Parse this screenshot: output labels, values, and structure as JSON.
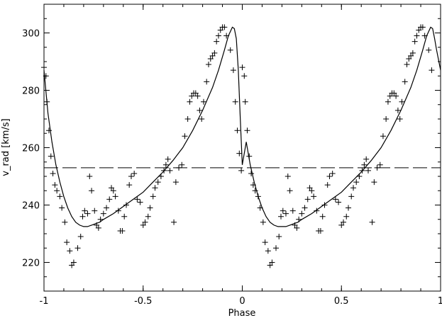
{
  "chart_data": {
    "type": "scatter",
    "title": "",
    "xlabel": "Phase",
    "ylabel": "v_rad  [km/s]",
    "xlim": [
      -1,
      1
    ],
    "ylim": [
      210,
      310
    ],
    "x_ticks": [
      -1,
      -0.5,
      0,
      0.5,
      1
    ],
    "x_tick_labels": [
      "-1",
      "-0.5",
      "0",
      "0.5",
      "1"
    ],
    "y_ticks": [
      220,
      240,
      260,
      280,
      300
    ],
    "y_tick_labels": [
      "220",
      "240",
      "260",
      "280",
      "300"
    ],
    "grid": false,
    "legend": "none",
    "reference_line": {
      "y": 253,
      "style": "dashed"
    },
    "series": [
      {
        "kind": "points",
        "marker": "plus",
        "points": [
          [
            -1.0,
            288
          ],
          [
            -0.99,
            285
          ],
          [
            -0.985,
            276
          ],
          [
            -0.975,
            266
          ],
          [
            -0.965,
            257
          ],
          [
            -0.955,
            251
          ],
          [
            -0.945,
            247
          ],
          [
            -0.935,
            245
          ],
          [
            -0.92,
            243
          ],
          [
            -0.91,
            239
          ],
          [
            -0.895,
            234
          ],
          [
            -0.885,
            227
          ],
          [
            -0.87,
            224
          ],
          [
            -0.86,
            219
          ],
          [
            -0.85,
            220
          ],
          [
            -0.83,
            225
          ],
          [
            -0.815,
            229
          ],
          [
            -0.805,
            236
          ],
          [
            -0.795,
            238
          ],
          [
            -0.78,
            237
          ],
          [
            -0.77,
            250
          ],
          [
            -0.76,
            245
          ],
          [
            -0.745,
            238
          ],
          [
            -0.735,
            233
          ],
          [
            -0.725,
            232
          ],
          [
            -0.715,
            235
          ],
          [
            -0.7,
            237
          ],
          [
            -0.685,
            239
          ],
          [
            -0.67,
            242
          ],
          [
            -0.66,
            246
          ],
          [
            -0.65,
            245
          ],
          [
            -0.64,
            243
          ],
          [
            -0.625,
            238
          ],
          [
            -0.615,
            231
          ],
          [
            -0.605,
            231
          ],
          [
            -0.595,
            236
          ],
          [
            -0.585,
            240
          ],
          [
            -0.57,
            247
          ],
          [
            -0.56,
            250
          ],
          [
            -0.545,
            251
          ],
          [
            -0.53,
            242
          ],
          [
            -0.515,
            241
          ],
          [
            -0.5,
            233
          ],
          [
            -0.49,
            234
          ],
          [
            -0.475,
            236
          ],
          [
            -0.465,
            239
          ],
          [
            -0.45,
            243
          ],
          [
            -0.44,
            246
          ],
          [
            -0.425,
            248
          ],
          [
            -0.41,
            250
          ],
          [
            -0.395,
            252
          ],
          [
            -0.385,
            254
          ],
          [
            -0.375,
            256
          ],
          [
            -0.365,
            252
          ],
          [
            -0.345,
            234
          ],
          [
            -0.335,
            248
          ],
          [
            -0.32,
            253
          ],
          [
            -0.305,
            254
          ],
          [
            -0.29,
            264
          ],
          [
            -0.275,
            270
          ],
          [
            -0.265,
            276
          ],
          [
            -0.255,
            278
          ],
          [
            -0.245,
            279
          ],
          [
            -0.235,
            279
          ],
          [
            -0.225,
            278
          ],
          [
            -0.215,
            273
          ],
          [
            -0.205,
            270
          ],
          [
            -0.195,
            276
          ],
          [
            -0.18,
            283
          ],
          [
            -0.17,
            289
          ],
          [
            -0.16,
            291
          ],
          [
            -0.15,
            292
          ],
          [
            -0.14,
            293
          ],
          [
            -0.13,
            297
          ],
          [
            -0.12,
            299
          ],
          [
            -0.11,
            301
          ],
          [
            -0.1,
            302
          ],
          [
            -0.09,
            302
          ],
          [
            -0.08,
            299
          ],
          [
            -0.06,
            294
          ],
          [
            -0.045,
            287
          ],
          [
            -0.035,
            276
          ],
          [
            -0.025,
            266
          ],
          [
            -0.015,
            258
          ],
          [
            -0.005,
            252
          ],
          [
            0.0,
            288
          ],
          [
            0.01,
            285
          ],
          [
            0.015,
            276
          ],
          [
            0.025,
            266
          ],
          [
            0.035,
            257
          ],
          [
            0.045,
            251
          ],
          [
            0.055,
            247
          ],
          [
            0.065,
            245
          ],
          [
            0.08,
            243
          ],
          [
            0.09,
            239
          ],
          [
            0.105,
            234
          ],
          [
            0.115,
            227
          ],
          [
            0.13,
            224
          ],
          [
            0.14,
            219
          ],
          [
            0.15,
            220
          ],
          [
            0.17,
            225
          ],
          [
            0.185,
            229
          ],
          [
            0.195,
            236
          ],
          [
            0.205,
            238
          ],
          [
            0.22,
            237
          ],
          [
            0.23,
            250
          ],
          [
            0.24,
            245
          ],
          [
            0.255,
            238
          ],
          [
            0.265,
            233
          ],
          [
            0.275,
            232
          ],
          [
            0.285,
            235
          ],
          [
            0.3,
            237
          ],
          [
            0.315,
            239
          ],
          [
            0.33,
            242
          ],
          [
            0.34,
            246
          ],
          [
            0.35,
            245
          ],
          [
            0.36,
            243
          ],
          [
            0.375,
            238
          ],
          [
            0.385,
            231
          ],
          [
            0.395,
            231
          ],
          [
            0.405,
            236
          ],
          [
            0.415,
            240
          ],
          [
            0.43,
            247
          ],
          [
            0.44,
            250
          ],
          [
            0.455,
            251
          ],
          [
            0.47,
            242
          ],
          [
            0.485,
            241
          ],
          [
            0.5,
            233
          ],
          [
            0.51,
            234
          ],
          [
            0.525,
            236
          ],
          [
            0.535,
            239
          ],
          [
            0.55,
            243
          ],
          [
            0.56,
            246
          ],
          [
            0.575,
            248
          ],
          [
            0.59,
            250
          ],
          [
            0.605,
            252
          ],
          [
            0.615,
            254
          ],
          [
            0.625,
            256
          ],
          [
            0.635,
            252
          ],
          [
            0.655,
            234
          ],
          [
            0.665,
            248
          ],
          [
            0.68,
            253
          ],
          [
            0.695,
            254
          ],
          [
            0.71,
            264
          ],
          [
            0.725,
            270
          ],
          [
            0.735,
            276
          ],
          [
            0.745,
            278
          ],
          [
            0.755,
            279
          ],
          [
            0.765,
            279
          ],
          [
            0.775,
            278
          ],
          [
            0.785,
            273
          ],
          [
            0.795,
            270
          ],
          [
            0.805,
            276
          ],
          [
            0.82,
            283
          ],
          [
            0.83,
            289
          ],
          [
            0.84,
            291
          ],
          [
            0.85,
            292
          ],
          [
            0.86,
            293
          ],
          [
            0.87,
            297
          ],
          [
            0.88,
            299
          ],
          [
            0.89,
            301
          ],
          [
            0.9,
            302
          ],
          [
            0.91,
            302
          ],
          [
            0.92,
            299
          ],
          [
            0.94,
            294
          ],
          [
            0.955,
            287
          ]
        ]
      },
      {
        "kind": "line",
        "style": "solid",
        "points": [
          [
            -1.0,
            287
          ],
          [
            -0.98,
            272
          ],
          [
            -0.96,
            262
          ],
          [
            -0.94,
            254
          ],
          [
            -0.92,
            248
          ],
          [
            -0.9,
            243
          ],
          [
            -0.88,
            239
          ],
          [
            -0.86,
            236
          ],
          [
            -0.84,
            234
          ],
          [
            -0.82,
            233
          ],
          [
            -0.8,
            232.5
          ],
          [
            -0.78,
            232.5
          ],
          [
            -0.76,
            233
          ],
          [
            -0.74,
            233.5
          ],
          [
            -0.72,
            234
          ],
          [
            -0.7,
            235
          ],
          [
            -0.65,
            237
          ],
          [
            -0.6,
            239.5
          ],
          [
            -0.55,
            242
          ],
          [
            -0.5,
            244.5
          ],
          [
            -0.45,
            248
          ],
          [
            -0.4,
            251.5
          ],
          [
            -0.35,
            255.5
          ],
          [
            -0.3,
            260
          ],
          [
            -0.25,
            266
          ],
          [
            -0.2,
            273
          ],
          [
            -0.15,
            281
          ],
          [
            -0.12,
            287
          ],
          [
            -0.09,
            294
          ],
          [
            -0.07,
            299
          ],
          [
            -0.05,
            302
          ],
          [
            -0.04,
            301.5
          ],
          [
            -0.03,
            298
          ],
          [
            -0.02,
            287
          ],
          [
            -0.01,
            270
          ],
          [
            0.0,
            254
          ],
          [
            0.02,
            262
          ],
          [
            0.04,
            254
          ],
          [
            0.06,
            248
          ],
          [
            0.08,
            243
          ],
          [
            0.1,
            239
          ],
          [
            0.12,
            236
          ],
          [
            0.14,
            234
          ],
          [
            0.16,
            233
          ],
          [
            0.18,
            232.5
          ],
          [
            0.2,
            232.5
          ],
          [
            0.22,
            232.5
          ],
          [
            0.24,
            233
          ],
          [
            0.26,
            233.5
          ],
          [
            0.28,
            234
          ],
          [
            0.3,
            235
          ],
          [
            0.35,
            237
          ],
          [
            0.4,
            239.5
          ],
          [
            0.45,
            242
          ],
          [
            0.5,
            244.5
          ],
          [
            0.55,
            248
          ],
          [
            0.6,
            251.5
          ],
          [
            0.65,
            255.5
          ],
          [
            0.7,
            260
          ],
          [
            0.75,
            266
          ],
          [
            0.8,
            273
          ],
          [
            0.85,
            281
          ],
          [
            0.88,
            287
          ],
          [
            0.91,
            294
          ],
          [
            0.93,
            299
          ],
          [
            0.95,
            302
          ],
          [
            0.96,
            301.5
          ],
          [
            0.97,
            298
          ],
          [
            0.98,
            294
          ],
          [
            1.0,
            287
          ]
        ]
      }
    ]
  }
}
